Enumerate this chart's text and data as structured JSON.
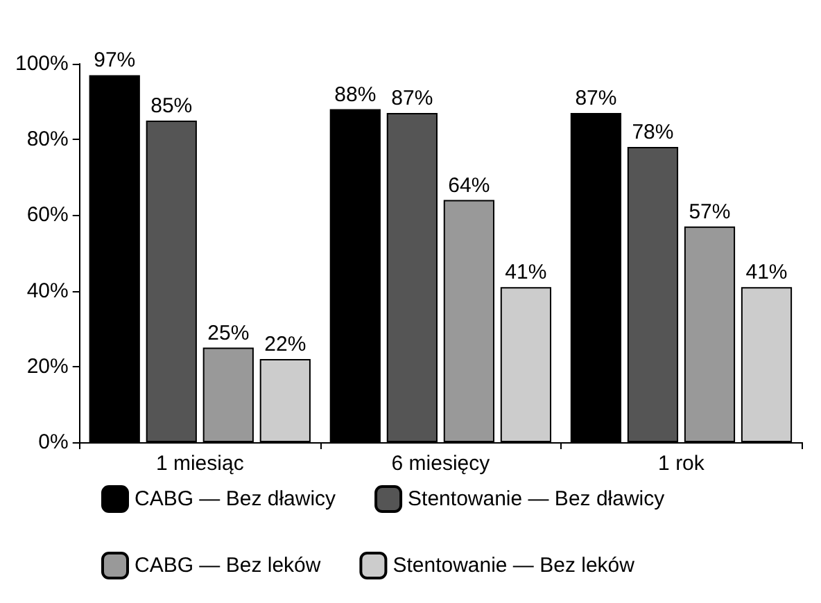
{
  "chart_data": {
    "type": "bar",
    "categories": [
      "1 miesiąc",
      "6 miesięcy",
      "1 rok"
    ],
    "series": [
      {
        "name": "CABG — Bez dławicy",
        "color": "#000000",
        "values": [
          97,
          88,
          87
        ],
        "value_labels": [
          "97%",
          "88%",
          "87%"
        ]
      },
      {
        "name": "Stentowanie — Bez dławicy",
        "color": "#555555",
        "values": [
          85,
          87,
          78
        ],
        "value_labels": [
          "85%",
          "87%",
          "78%"
        ]
      },
      {
        "name": "CABG — Bez leków",
        "color": "#999999",
        "values": [
          25,
          64,
          57
        ],
        "value_labels": [
          "25%",
          "64%",
          "57%"
        ]
      },
      {
        "name": "Stentowanie — Bez leków",
        "color": "#cccccc",
        "values": [
          22,
          41,
          41
        ],
        "value_labels": [
          "22%",
          "41%",
          "41%"
        ]
      }
    ],
    "ylim": [
      0,
      100
    ],
    "yticks": [
      {
        "value": 0,
        "label": "0%"
      },
      {
        "value": 20,
        "label": "20%"
      },
      {
        "value": 40,
        "label": "40%"
      },
      {
        "value": 60,
        "label": "60%"
      },
      {
        "value": 80,
        "label": "80%"
      },
      {
        "value": 100,
        "label": "100%"
      }
    ],
    "grid": false,
    "legend": "bottom"
  }
}
